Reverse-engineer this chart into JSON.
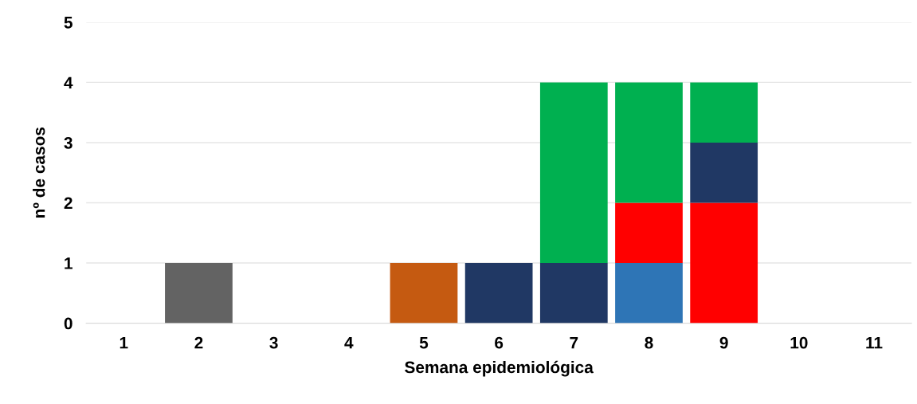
{
  "chart_data": {
    "type": "bar",
    "stacked": true,
    "xlabel": "Semana epidemiológica",
    "ylabel": "nº de casos",
    "categories": [
      "1",
      "2",
      "3",
      "4",
      "5",
      "6",
      "7",
      "8",
      "9",
      "10",
      "11"
    ],
    "series": [
      {
        "color": "#636363",
        "values": [
          null,
          1,
          null,
          null,
          null,
          null,
          null,
          null,
          null,
          null,
          null
        ]
      },
      {
        "color": "#c55a11",
        "values": [
          null,
          null,
          null,
          null,
          1,
          null,
          null,
          null,
          null,
          null,
          null
        ]
      },
      {
        "color": "#2e75b6",
        "values": [
          null,
          null,
          null,
          null,
          null,
          null,
          null,
          1,
          null,
          null,
          null
        ]
      },
      {
        "color": "#ff0000",
        "values": [
          null,
          null,
          null,
          null,
          null,
          null,
          null,
          1,
          2,
          null,
          null
        ]
      },
      {
        "color": "#203864",
        "values": [
          null,
          null,
          null,
          null,
          null,
          1,
          1,
          null,
          1,
          null,
          null
        ]
      },
      {
        "color": "#00b050",
        "values": [
          null,
          null,
          null,
          null,
          null,
          null,
          3,
          2,
          1,
          null,
          null
        ]
      }
    ],
    "ylim": [
      0,
      5
    ],
    "yticks": [
      0,
      1,
      2,
      3,
      4,
      5
    ],
    "grid": "y"
  }
}
